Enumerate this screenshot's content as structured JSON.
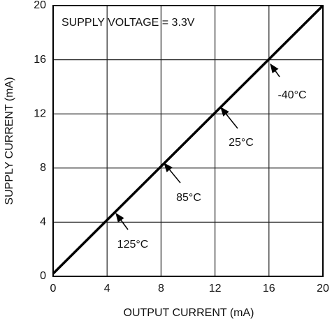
{
  "chart_data": {
    "type": "line",
    "x_label": "OUTPUT CURRENT (mA)",
    "y_label": "SUPPLY CURRENT (mA)",
    "annotations": [
      "SUPPLY VOLTAGE = 3.3V",
      "-40°C",
      "25°C",
      "85°C",
      "125°C"
    ],
    "x": [
      0,
      20
    ],
    "series": [
      {
        "color": "#000000",
        "values": [
          0.2,
          20
        ]
      }
    ],
    "xlim": [
      0,
      20
    ],
    "xticks": [
      0,
      4,
      8,
      12,
      16,
      20
    ],
    "ylim": [
      0,
      20
    ],
    "yticks": [
      0,
      4,
      8,
      12,
      16,
      20
    ],
    "grid": true
  }
}
